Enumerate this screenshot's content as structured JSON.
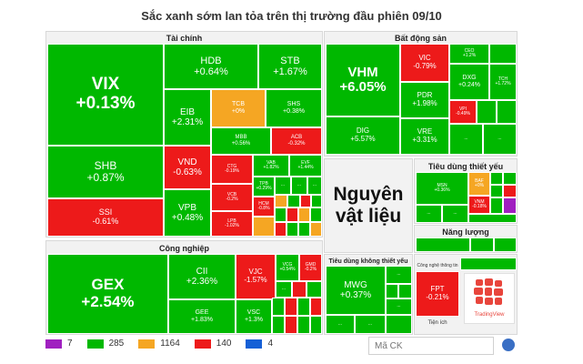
{
  "chart_data": {
    "type": "treemap",
    "title": "Sắc xanh sớm lan tỏa trên thị trường đầu phiên 09/10",
    "sectors": {
      "tai_chinh": "Tài chính",
      "bat_dong_san": "Bất động sản",
      "cong_nghiep": "Công nghiệp",
      "tieu_dung_thiet_yeu": "Tiêu dùng thiết yếu",
      "nang_luong": "Năng lượng",
      "tieu_dung_khong_thiet_yeu": "Tiêu dùng không thiết yếu",
      "nguyen_vat_lieu_1": "Nguyên",
      "nguyen_vat_lieu_2": "vật liệu",
      "cong_nghe": "Công nghệ thông tin",
      "tien_ich": "Tiện ích"
    },
    "tiles": [
      {
        "ticker": "VIX",
        "change": "+0.13%",
        "color": "green"
      },
      {
        "ticker": "SHB",
        "change": "+0.87%",
        "color": "green"
      },
      {
        "ticker": "SSI",
        "change": "-0.61%",
        "color": "red"
      },
      {
        "ticker": "HDB",
        "change": "+0.64%",
        "color": "green"
      },
      {
        "ticker": "STB",
        "change": "+1.67%",
        "color": "green"
      },
      {
        "ticker": "EIB",
        "change": "+2.31%",
        "color": "green"
      },
      {
        "ticker": "TCB",
        "change": "+0%",
        "color": "yellow"
      },
      {
        "ticker": "SHS",
        "change": "+0.38%",
        "color": "green"
      },
      {
        "ticker": "MBB",
        "change": "+0.56%",
        "color": "green"
      },
      {
        "ticker": "ACB",
        "change": "-0.32%",
        "color": "red"
      },
      {
        "ticker": "VND",
        "change": "-0.63%",
        "color": "red"
      },
      {
        "ticker": "VPB",
        "change": "+0.48%",
        "color": "green"
      },
      {
        "ticker": "CTG",
        "change": "-0.19%",
        "color": "red"
      },
      {
        "ticker": "VCB",
        "change": "-0.2%",
        "color": "red"
      },
      {
        "ticker": "LPB",
        "change": "-1.02%",
        "color": "red"
      },
      {
        "ticker": "VAB",
        "change": "+1.82%",
        "color": "green"
      },
      {
        "ticker": "EVF",
        "change": "+1.44%",
        "color": "green"
      },
      {
        "ticker": "TPB",
        "change": "+0.29%",
        "color": "green"
      },
      {
        "ticker": "HCM",
        "change": "-0.8%",
        "color": "red"
      },
      {
        "ticker": "VHM",
        "change": "+6.05%",
        "color": "green"
      },
      {
        "ticker": "VIC",
        "change": "-0.79%",
        "color": "red"
      },
      {
        "ticker": "CEO",
        "change": "+1.2%",
        "color": "green"
      },
      {
        "ticker": "DXG",
        "change": "+0.24%",
        "color": "green"
      },
      {
        "ticker": "TCH",
        "change": "+1.72%",
        "color": "green"
      },
      {
        "ticker": "PDR",
        "change": "+1.98%",
        "color": "green"
      },
      {
        "ticker": "VPI",
        "change": "-0.49%",
        "color": "red"
      },
      {
        "ticker": "DIG",
        "change": "+5.57%",
        "color": "green"
      },
      {
        "ticker": "VRE",
        "change": "+3.31%",
        "color": "green"
      },
      {
        "ticker": "GEX",
        "change": "+2.54%",
        "color": "green"
      },
      {
        "ticker": "CII",
        "change": "+2.36%",
        "color": "green"
      },
      {
        "ticker": "VJC",
        "change": "-1.57%",
        "color": "red"
      },
      {
        "ticker": "VCG",
        "change": "+0.54%",
        "color": "green"
      },
      {
        "ticker": "GMD",
        "change": "-0.2%",
        "color": "red"
      },
      {
        "ticker": "GEE",
        "change": "+1.83%",
        "color": "green"
      },
      {
        "ticker": "VSC",
        "change": "+1.3%",
        "color": "green"
      },
      {
        "ticker": "MSN",
        "change": "+0.36%",
        "color": "green"
      },
      {
        "ticker": "BAF",
        "change": "+0%",
        "color": "yellow"
      },
      {
        "ticker": "VNM",
        "change": "-0.18%",
        "color": "red"
      },
      {
        "ticker": "MWG",
        "change": "+0.37%",
        "color": "green"
      },
      {
        "ticker": "FPT",
        "change": "-0.21%",
        "color": "red"
      }
    ],
    "more_label": "...",
    "legend": [
      {
        "color": "#a020c0",
        "count": "7"
      },
      {
        "color": "#00b800",
        "count": "285"
      },
      {
        "color": "#f5a623",
        "count": "1164"
      },
      {
        "color": "#ed1a1a",
        "count": "140"
      },
      {
        "color": "#1560d6",
        "count": "4"
      }
    ],
    "brand": "TradingView"
  },
  "search": {
    "placeholder": "Mã CK"
  }
}
